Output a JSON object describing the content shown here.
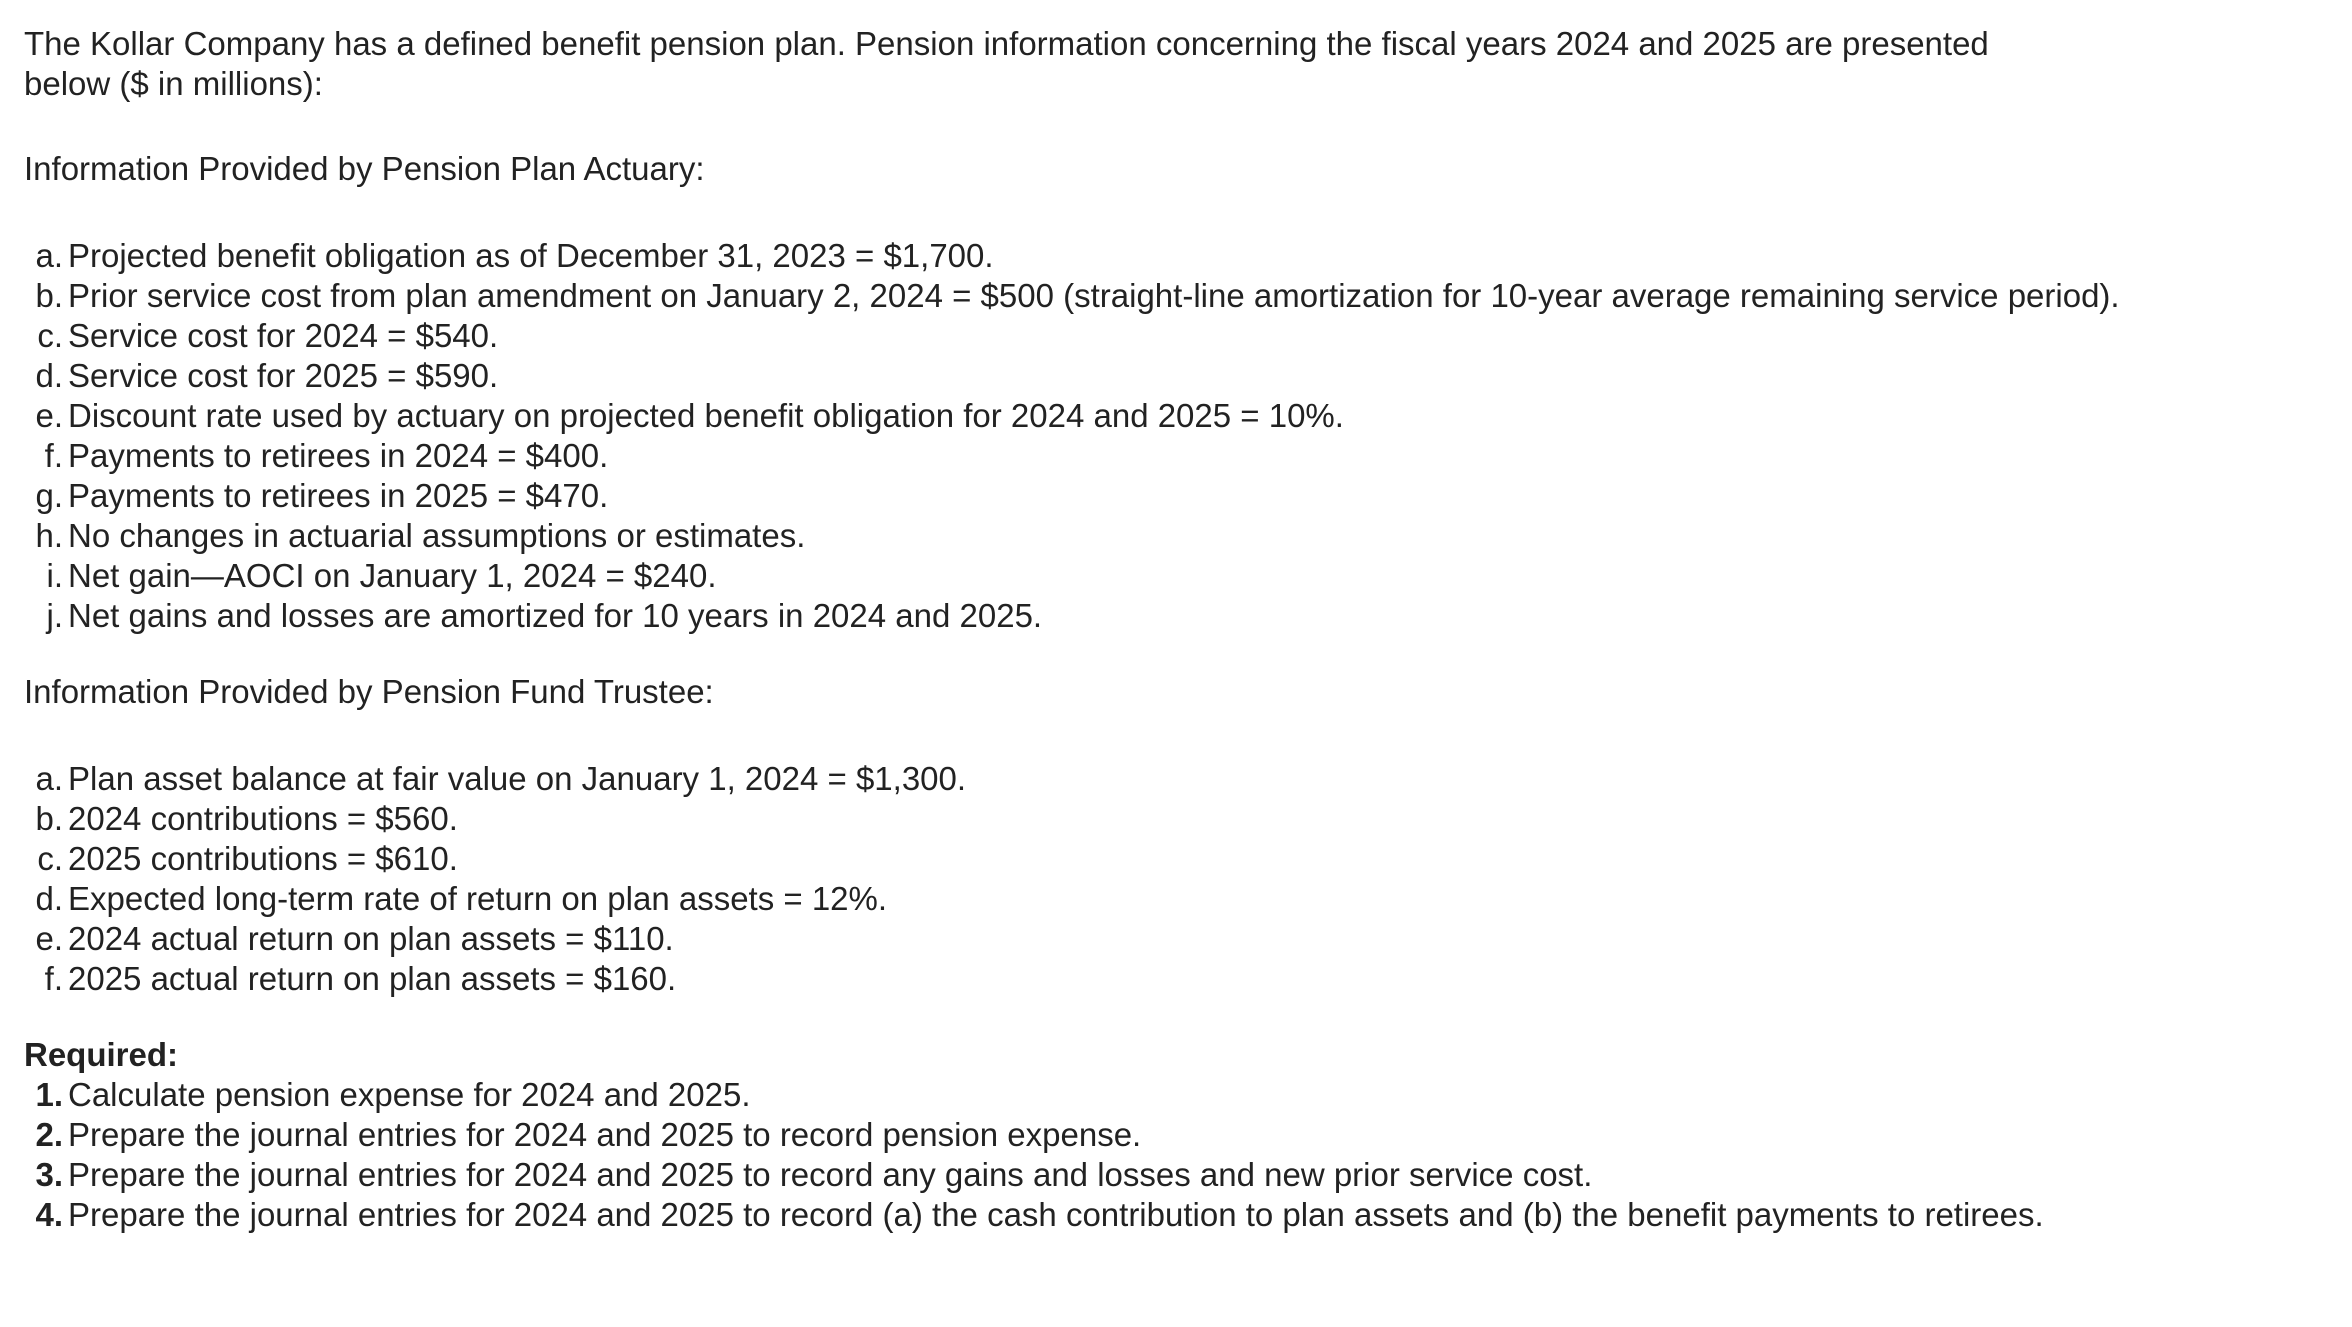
{
  "intro": "The Kollar Company has a defined benefit pension plan. Pension information concerning the fiscal years 2024 and 2025 are presented below ($ in millions):",
  "actuary": {
    "heading": "Information Provided by Pension Plan Actuary:",
    "items": [
      {
        "marker": "a.",
        "text": "Projected benefit obligation as of December 31, 2023 = $1,700."
      },
      {
        "marker": "b.",
        "text": "Prior service cost from plan amendment on January 2, 2024 = $500 (straight-line amortization for 10-year average remaining service period)."
      },
      {
        "marker": "c.",
        "text": "Service cost for 2024 = $540."
      },
      {
        "marker": "d.",
        "text": "Service cost for 2025 = $590."
      },
      {
        "marker": "e.",
        "text": "Discount rate used by actuary on projected benefit obligation for 2024 and 2025 = 10%."
      },
      {
        "marker": "f.",
        "text": "Payments to retirees in 2024 = $400."
      },
      {
        "marker": "g.",
        "text": "Payments to retirees in 2025 = $470."
      },
      {
        "marker": "h.",
        "text": "No changes in actuarial assumptions or estimates."
      },
      {
        "marker": "i.",
        "text": "Net gain—AOCI on January 1, 2024 = $240."
      },
      {
        "marker": "j.",
        "text": "Net gains and losses are amortized for 10 years in 2024 and 2025."
      }
    ]
  },
  "trustee": {
    "heading": "Information Provided by Pension Fund Trustee:",
    "items": [
      {
        "marker": "a.",
        "text": "Plan asset balance at fair value on January 1, 2024 = $1,300."
      },
      {
        "marker": "b.",
        "text": "2024 contributions = $560."
      },
      {
        "marker": "c.",
        "text": "2025 contributions = $610."
      },
      {
        "marker": "d.",
        "text": "Expected long-term rate of return on plan assets = 12%."
      },
      {
        "marker": "e.",
        "text": "2024 actual return on plan assets = $110."
      },
      {
        "marker": "f.",
        "text": "2025 actual return on plan assets = $160."
      }
    ]
  },
  "required": {
    "heading": "Required:",
    "items": [
      {
        "marker": "1.",
        "text": "Calculate pension expense for 2024 and 2025."
      },
      {
        "marker": "2.",
        "text": "Prepare the journal entries for 2024 and 2025 to record pension expense."
      },
      {
        "marker": "3.",
        "text": "Prepare the journal entries for 2024 and 2025 to record any gains and losses and new prior service cost."
      },
      {
        "marker": "4.",
        "text": "Prepare the journal entries for 2024 and 2025 to record (a) the cash contribution to plan assets and (b) the benefit payments to retirees."
      }
    ]
  }
}
